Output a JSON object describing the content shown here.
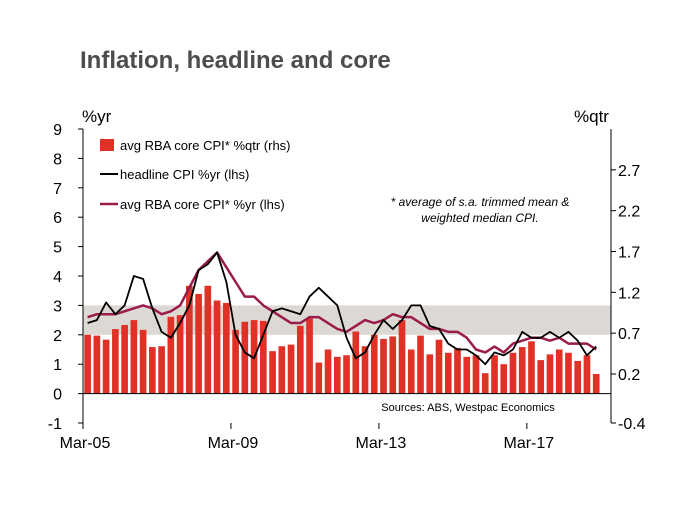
{
  "chart_data": {
    "type": "bar",
    "title": "Inflation, headline and core",
    "left_axis": {
      "unit_label": "%yr",
      "min": -1,
      "max": 9,
      "ticks": [
        -1,
        0,
        1,
        2,
        3,
        4,
        5,
        6,
        7,
        8,
        9
      ]
    },
    "right_axis": {
      "unit_label": "%qtr",
      "min": -0.4,
      "max": 3.2,
      "ticks": [
        -0.4,
        0.2,
        0.7,
        1.2,
        1.7,
        2.2,
        2.7
      ]
    },
    "x_tick_labels": [
      "Mar-05",
      "Mar-09",
      "Mar-13",
      "Mar-17"
    ],
    "x_range": [
      "Mar-05",
      "Jun-19"
    ],
    "target_band": {
      "from": 2,
      "to": 3,
      "color": "#dcd9d4"
    },
    "colors": {
      "bars": "#e03127",
      "headline": "#000000",
      "core": "#9b1b4a",
      "band": "#dcd9d4"
    },
    "legend": {
      "bars": "avg RBA core CPI* %qtr (rhs)",
      "headline": "headline CPI %yr (lhs)",
      "core": "avg RBA core CPI* %yr (lhs)"
    },
    "note_lines": [
      "* average of s.a. trimmed mean &",
      "weighted median CPI."
    ],
    "source": "Sources: ABS, Westpac Economics",
    "series": [
      {
        "name": "avg RBA core CPI* %qtr (rhs)",
        "axis": "right",
        "values": [
          0.68,
          0.67,
          0.62,
          0.75,
          0.8,
          0.86,
          0.74,
          0.53,
          0.54,
          0.9,
          0.92,
          1.28,
          1.18,
          1.28,
          1.1,
          1.07,
          0.74,
          0.84,
          0.86,
          0.85,
          0.48,
          0.54,
          0.56,
          0.79,
          0.88,
          0.34,
          0.5,
          0.41,
          0.43,
          0.72,
          0.54,
          0.68,
          0.63,
          0.66,
          0.86,
          0.5,
          0.67,
          0.44,
          0.62,
          0.46,
          0.52,
          0.41,
          0.43,
          0.21,
          0.43,
          0.32,
          0.46,
          0.53,
          0.6,
          0.37,
          0.44,
          0.5,
          0.46,
          0.36,
          0.43,
          0.2
        ]
      },
      {
        "name": "headline CPI %yr (lhs)",
        "axis": "left",
        "values": [
          2.4,
          2.5,
          3.1,
          2.7,
          3.0,
          4.0,
          3.9,
          2.9,
          2.1,
          1.9,
          2.4,
          3.0,
          4.2,
          4.4,
          4.8,
          3.8,
          2.0,
          1.4,
          1.2,
          2.0,
          2.8,
          2.9,
          2.8,
          2.7,
          3.3,
          3.6,
          3.3,
          3.0,
          1.9,
          1.2,
          1.4,
          2.0,
          2.5,
          2.2,
          2.5,
          3.0,
          3.0,
          2.3,
          2.2,
          1.7,
          1.5,
          1.5,
          1.3,
          1.0,
          1.4,
          1.3,
          1.5,
          2.1,
          1.9,
          1.9,
          2.1,
          1.9,
          2.1,
          1.8,
          1.3,
          1.6
        ]
      },
      {
        "name": "avg RBA core CPI* %yr (lhs)",
        "axis": "left",
        "values": [
          2.6,
          2.7,
          2.7,
          2.7,
          2.8,
          2.9,
          3.0,
          2.9,
          2.7,
          2.8,
          3.0,
          3.6,
          4.2,
          4.5,
          4.8,
          4.3,
          3.8,
          3.3,
          3.3,
          3.0,
          2.8,
          2.6,
          2.4,
          2.4,
          2.6,
          2.6,
          2.4,
          2.2,
          2.1,
          2.3,
          2.5,
          2.4,
          2.5,
          2.7,
          2.6,
          2.6,
          2.4,
          2.2,
          2.2,
          2.1,
          2.1,
          1.9,
          1.5,
          1.4,
          1.6,
          1.4,
          1.7,
          1.8,
          1.9,
          1.9,
          1.8,
          1.9,
          1.7,
          1.7,
          1.7,
          1.5
        ]
      }
    ]
  }
}
